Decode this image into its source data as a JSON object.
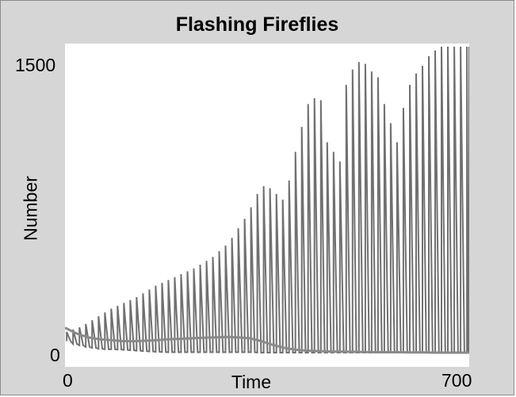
{
  "chart_data": {
    "type": "line",
    "title": "Flashing Fireflies",
    "xlabel": "Time",
    "ylabel": "Number",
    "xlim": [
      0,
      700
    ],
    "ylim": [
      0,
      1500
    ],
    "x_ticks": [
      "0",
      "700"
    ],
    "y_ticks": [
      "0",
      "1500"
    ],
    "grid": false,
    "legend": "none",
    "series": [
      {
        "color": "#707070",
        "peak_x": [
          3,
          14,
          25,
          36,
          47,
          58,
          69,
          80,
          91,
          102,
          113,
          124,
          135,
          146,
          157,
          168,
          179,
          190,
          201,
          212,
          223,
          234,
          245,
          256,
          267,
          278,
          289,
          300,
          311,
          322,
          333,
          344,
          355,
          366,
          377,
          388,
          399,
          410,
          421,
          432,
          443,
          454,
          465,
          476,
          487,
          498,
          509,
          520,
          531,
          542,
          553,
          564,
          575,
          586,
          597,
          608,
          619,
          630,
          641,
          652,
          663,
          674,
          685,
          696,
          700
        ],
        "peak_y": [
          108,
          120,
          132,
          150,
          170,
          190,
          210,
          230,
          245,
          260,
          275,
          290,
          310,
          330,
          350,
          365,
          380,
          395,
          410,
          425,
          440,
          460,
          480,
          500,
          530,
          560,
          600,
          650,
          700,
          760,
          830,
          870,
          860,
          830,
          800,
          900,
          1050,
          1180,
          1300,
          1330,
          1320,
          1100,
          1050,
          1000,
          1400,
          1480,
          1520,
          1510,
          1470,
          1440,
          1300,
          1200,
          1100,
          1280,
          1400,
          1460,
          1500,
          1550,
          1580,
          1600,
          1600,
          1600,
          1600,
          1600,
          1600
        ],
        "trough_y": [
          60,
          45,
          38,
          30,
          25,
          20,
          18,
          18,
          16,
          14,
          12,
          10,
          8,
          6,
          4,
          3,
          2,
          2,
          2,
          2,
          2,
          2,
          2,
          2,
          2,
          2,
          2,
          2,
          2,
          2,
          0,
          0,
          0,
          0,
          0,
          0,
          0,
          0,
          0,
          0,
          0,
          0,
          0,
          0,
          0,
          0,
          0,
          0,
          0,
          0,
          0,
          0,
          0,
          0,
          0,
          0,
          0,
          0,
          0,
          0,
          0,
          0,
          0,
          0,
          0
        ]
      },
      {
        "color": "#8a8a8a",
        "x": [
          0,
          20,
          40,
          60,
          80,
          100,
          120,
          140,
          160,
          180,
          200,
          220,
          240,
          260,
          280,
          300,
          320,
          340,
          360,
          380,
          400,
          420,
          440,
          460,
          480,
          500,
          520,
          540,
          560,
          580,
          600,
          620,
          640,
          660,
          680,
          700
        ],
        "values": [
          130,
          100,
          80,
          70,
          65,
          60,
          60,
          62,
          65,
          70,
          72,
          75,
          78,
          80,
          82,
          80,
          75,
          60,
          40,
          25,
          15,
          10,
          8,
          6,
          5,
          4,
          3,
          2,
          2,
          2,
          1,
          1,
          0,
          0,
          0,
          0
        ]
      }
    ]
  }
}
